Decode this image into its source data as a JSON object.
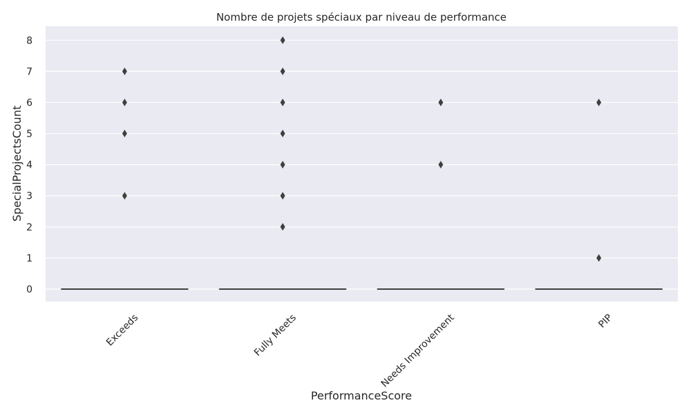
{
  "chart_data": {
    "type": "box",
    "title": "Nombre de projets spéciaux par niveau de performance",
    "xlabel": "PerformanceScore",
    "ylabel": "SpecialProjectsCount",
    "categories": [
      "Exceeds",
      "Fully Meets",
      "Needs Improvement",
      "PIP"
    ],
    "ylim": [
      -0.4,
      8.45
    ],
    "yticks": [
      0,
      1,
      2,
      3,
      4,
      5,
      6,
      7,
      8
    ],
    "grid": true,
    "boxes": [
      {
        "category": "Exceeds",
        "q1": 0,
        "median": 0,
        "q3": 0,
        "whisker_low": 0,
        "whisker_high": 0
      },
      {
        "category": "Fully Meets",
        "q1": 0,
        "median": 0,
        "q3": 0,
        "whisker_low": 0,
        "whisker_high": 0
      },
      {
        "category": "Needs Improvement",
        "q1": 0,
        "median": 0,
        "q3": 0,
        "whisker_low": 0,
        "whisker_high": 0
      },
      {
        "category": "PIP",
        "q1": 0,
        "median": 0,
        "q3": 0,
        "whisker_low": 0,
        "whisker_high": 0
      }
    ],
    "outliers": [
      {
        "category": "Exceeds",
        "values": [
          3,
          5,
          6,
          7
        ]
      },
      {
        "category": "Fully Meets",
        "values": [
          2,
          3,
          4,
          5,
          6,
          7,
          8
        ]
      },
      {
        "category": "Needs Improvement",
        "values": [
          4,
          6
        ]
      },
      {
        "category": "PIP",
        "values": [
          1,
          6
        ]
      }
    ],
    "colors": {
      "background": "#eaeaf2",
      "grid": "#ffffff",
      "marks": "#3f3f3f",
      "text": "#262626"
    }
  }
}
